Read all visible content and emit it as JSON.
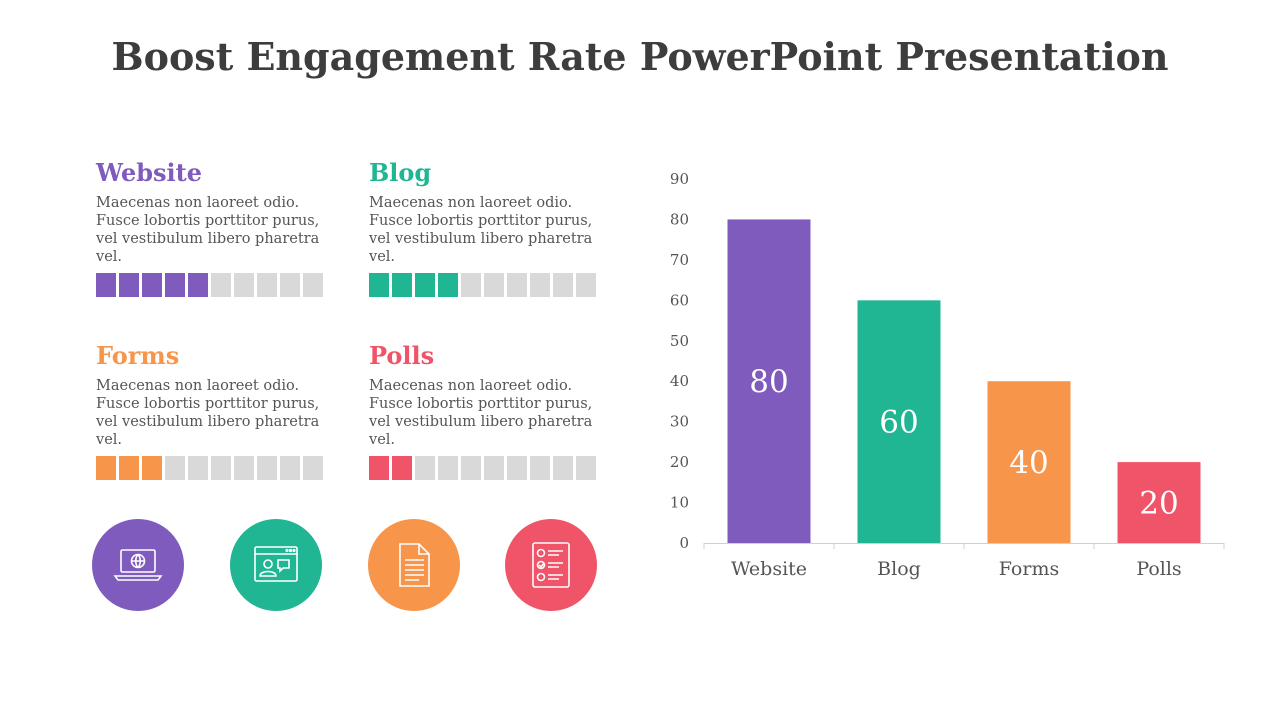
{
  "title": "Boost Engagement Rate PowerPoint Presentation",
  "cards": [
    {
      "heading": "Website",
      "text": "Maecenas non laoreet odio. Fusce lobortis porttitor purus, vel vestibulum libero pharetra vel.",
      "color": "#7f5bbe",
      "filled": 5,
      "total": 10
    },
    {
      "heading": "Blog",
      "text": "Maecenas non laoreet odio. Fusce lobortis porttitor purus, vel vestibulum libero pharetra vel.",
      "color": "#20b694",
      "filled": 4,
      "total": 10
    },
    {
      "heading": "Forms",
      "text": "Maecenas non laoreet odio. Fusce lobortis porttitor purus, vel vestibulum libero pharetra vel.",
      "color": "#f7954a",
      "filled": 3,
      "total": 10
    },
    {
      "heading": "Polls",
      "text": "Maecenas non laoreet odio. Fusce lobortis porttitor purus, vel vestibulum libero pharetra vel.",
      "color": "#f05468",
      "filled": 2,
      "total": 10
    }
  ],
  "icons": [
    {
      "name": "laptop-globe-icon",
      "color": "#7f5bbe"
    },
    {
      "name": "browser-chat-icon",
      "color": "#20b694"
    },
    {
      "name": "document-icon",
      "color": "#f7954a"
    },
    {
      "name": "checklist-icon",
      "color": "#f05468"
    }
  ],
  "chart_data": {
    "type": "bar",
    "categories": [
      "Website",
      "Blog",
      "Forms",
      "Polls"
    ],
    "values": [
      80,
      60,
      40,
      20
    ],
    "colors": [
      "#7f5bbe",
      "#20b694",
      "#f7954a",
      "#f05468"
    ],
    "yticks": [
      "0",
      "10",
      "20",
      "30",
      "40",
      "50",
      "60",
      "70",
      "80",
      "90"
    ],
    "ylim": [
      0,
      90
    ],
    "grid": false,
    "data_labels": true
  }
}
